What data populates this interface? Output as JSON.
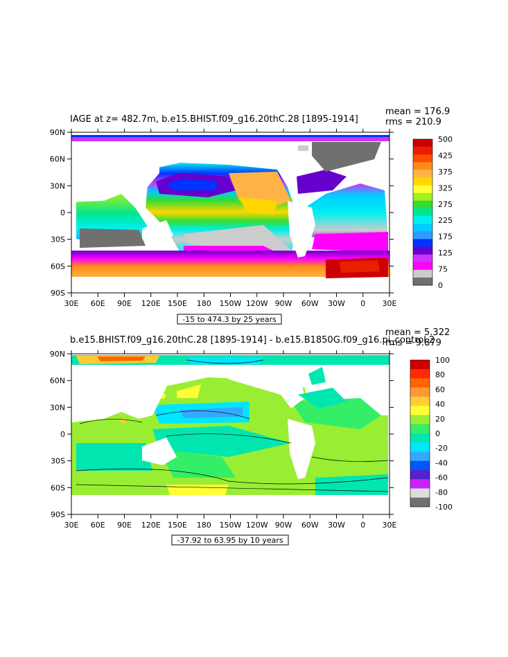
{
  "chart_data": [
    {
      "type": "heatmap",
      "title": "IAGE at z= 482.7m, b.e15.BHIST.f09_g16.20thC.28 [1895-1914]",
      "stats": [
        "mean = 176.9",
        "rms = 210.9"
      ],
      "x_ticks": [
        "30E",
        "60E",
        "90E",
        "120E",
        "150E",
        "180",
        "150W",
        "120W",
        "90W",
        "60W",
        "30W",
        "0",
        "30E"
      ],
      "y_ticks": [
        "90N",
        "60N",
        "30N",
        "0",
        "30S",
        "60S",
        "90S"
      ],
      "xlim": [
        30,
        390
      ],
      "ylim": [
        -90,
        90
      ],
      "colorbar": {
        "labels": [
          "500",
          "425",
          "375",
          "325",
          "275",
          "225",
          "175",
          "125",
          "75",
          "0"
        ],
        "colors": [
          "#cc0000",
          "#e82000",
          "#ff4d00",
          "#ff8c1a",
          "#ffb347",
          "#ffd700",
          "#ffff33",
          "#a0f020",
          "#33dd33",
          "#00e690",
          "#00f0f0",
          "#00ccff",
          "#3399ff",
          "#0033ff",
          "#6600cc",
          "#cc33ff",
          "#ff00ff",
          "#cccccc",
          "#707070"
        ]
      },
      "range_label": "-15 to 474.3 by 25 years"
    },
    {
      "type": "heatmap",
      "title": "b.e15.BHIST.f09_g16.20thC.28 [1895-1914] - b.e15.B1850G.f09_g16.pi_control.2",
      "stats": [
        "mean = 5.322",
        "rms = 9.879"
      ],
      "x_ticks": [
        "30E",
        "60E",
        "90E",
        "120E",
        "150E",
        "180",
        "150W",
        "120W",
        "90W",
        "60W",
        "30W",
        "0",
        "30E"
      ],
      "y_ticks": [
        "90N",
        "60N",
        "30N",
        "0",
        "30S",
        "60S",
        "90S"
      ],
      "xlim": [
        30,
        390
      ],
      "ylim": [
        -90,
        90
      ],
      "colorbar": {
        "labels": [
          "100",
          "80",
          "60",
          "40",
          "20",
          "0",
          "-20",
          "-40",
          "-60",
          "-80",
          "-100"
        ],
        "colors": [
          "#cc0000",
          "#ff2a00",
          "#ff6600",
          "#ff9933",
          "#ffcc33",
          "#ffff33",
          "#99ee33",
          "#33ee66",
          "#00e6b0",
          "#00e6ff",
          "#33aaff",
          "#0055ff",
          "#5522cc",
          "#cc22ff",
          "#dddddd",
          "#707070"
        ]
      },
      "range_label": "-37.92 to 63.95 by 10 years"
    }
  ]
}
